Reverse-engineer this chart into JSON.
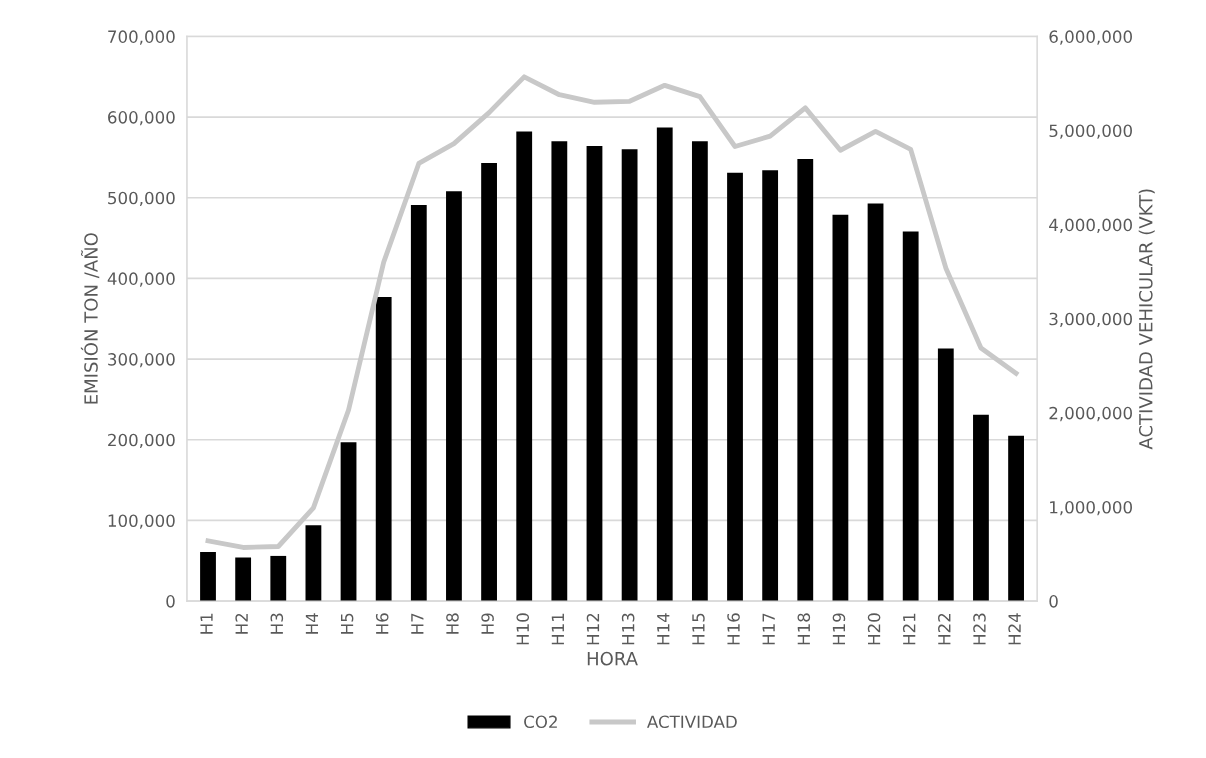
{
  "chart_data": {
    "type": "bar",
    "xlabel": "HORA",
    "ylabel": "EMISIÓN TON /AÑO",
    "y2label": "ACTIVIDAD VEHICULAR (VKT)",
    "categories": [
      "H1",
      "H2",
      "H3",
      "H4",
      "H5",
      "H6",
      "H7",
      "H8",
      "H9",
      "H10",
      "H11",
      "H12",
      "H13",
      "H14",
      "H15",
      "H16",
      "H17",
      "H18",
      "H19",
      "H20",
      "H21",
      "H22",
      "H23",
      "H24"
    ],
    "series": [
      {
        "name": "CO2",
        "color": "#000000",
        "values": [
          61000,
          54000,
          56000,
          94000,
          197000,
          377000,
          491000,
          508000,
          543000,
          582000,
          570000,
          564000,
          560000,
          587000,
          570000,
          531000,
          534000,
          548000,
          479000,
          493000,
          458000,
          313000,
          231000,
          205000
        ]
      },
      {
        "name": "ACTIVIDAD",
        "type": "line",
        "axis": "y2",
        "color": "#c8c8c8",
        "values": [
          640000,
          570000,
          580000,
          990000,
          2030000,
          3600000,
          4650000,
          4860000,
          5190000,
          5570000,
          5380000,
          5300000,
          5310000,
          5480000,
          5360000,
          4830000,
          4940000,
          5240000,
          4790000,
          4990000,
          4800000,
          3540000,
          2690000,
          2420000
        ]
      }
    ],
    "ylim": [
      0,
      700000
    ],
    "yticks": [
      0,
      {
        "value": 100000,
        "label": "100,000"
      },
      {
        "value": 200000,
        "label": "200,000"
      },
      {
        "value": 300000,
        "label": "300,000"
      },
      {
        "value": 400000,
        "label": "400,000"
      },
      {
        "value": 500000,
        "label": "500,000"
      },
      {
        "value": 600000,
        "label": "600,000"
      },
      {
        "value": 700000,
        "label": "700,000"
      }
    ],
    "y2lim": [
      0,
      6000000
    ],
    "y2ticks": [
      0,
      {
        "value": 1000000,
        "label": "1,000,000"
      },
      {
        "value": 2000000,
        "label": "2,000,000"
      },
      {
        "value": 3000000,
        "label": "3,000,000"
      },
      {
        "value": 4000000,
        "label": "4,000,000"
      },
      {
        "value": 5000000,
        "label": "5,000,000"
      },
      {
        "value": 6000000,
        "label": "6,000,000"
      }
    ],
    "grid": "y",
    "legend": "bottom",
    "marker": "none",
    "line_style": "solid"
  }
}
